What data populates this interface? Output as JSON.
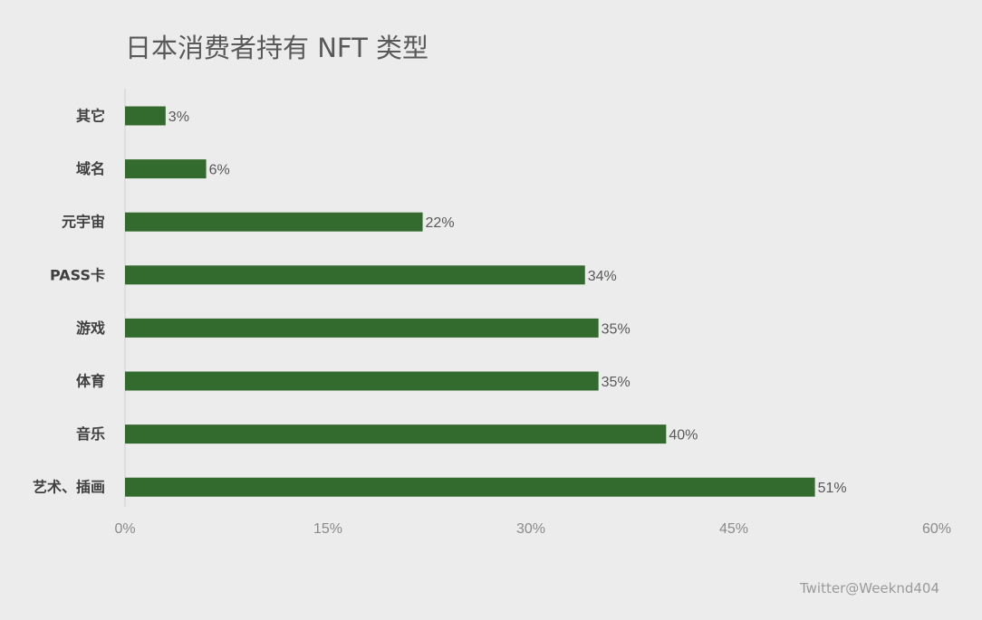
{
  "chart_data": {
    "type": "bar",
    "orientation": "horizontal",
    "title": "日本消费者持有 NFT 类型",
    "categories": [
      "其它",
      "域名",
      "元宇宙",
      "PASS卡",
      "游戏",
      "体育",
      "音乐",
      "艺术、插画"
    ],
    "values": [
      3,
      6,
      22,
      34,
      35,
      35,
      40,
      51
    ],
    "value_labels": [
      "3%",
      "6%",
      "22%",
      "34%",
      "35%",
      "35%",
      "40%",
      "51%"
    ],
    "x_ticks": [
      0,
      15,
      30,
      45,
      60
    ],
    "x_tick_labels": [
      "0%",
      "15%",
      "30%",
      "45%",
      "60%"
    ],
    "xlim": [
      0,
      60
    ],
    "xlabel": "",
    "ylabel": "",
    "grid": false,
    "legend": "none",
    "bar_color": "#336a2e"
  },
  "watermark": "Twitter@Weeknd404"
}
